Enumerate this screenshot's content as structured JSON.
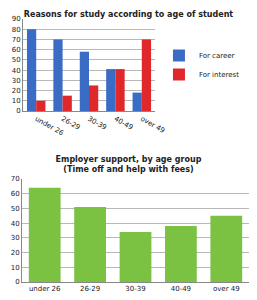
{
  "chart_data": [
    {
      "type": "bar",
      "title": "Reasons for study according to age of student",
      "categories": [
        "under 26",
        "26-29",
        "30-39",
        "40-49",
        "over 49"
      ],
      "series": [
        {
          "name": "For career",
          "color": "#3a6cc6",
          "values": [
            80,
            70,
            58,
            41,
            18
          ]
        },
        {
          "name": "For interest",
          "color": "#e0282a",
          "values": [
            10,
            15,
            25,
            41,
            70
          ]
        }
      ],
      "ylim": [
        0,
        90
      ],
      "yticks": [
        0,
        10,
        20,
        30,
        40,
        50,
        60,
        70,
        80,
        90
      ],
      "grid": true,
      "legend": "right"
    },
    {
      "type": "bar",
      "title": "Employer support, by age group\n(Time off and help with fees)",
      "categories": [
        "under 26",
        "26-29",
        "30-39",
        "40-49",
        "over 49"
      ],
      "values": [
        64,
        51,
        34,
        38,
        45
      ],
      "color": "#7cc242",
      "ylim": [
        0,
        70
      ],
      "yticks": [
        0,
        10,
        20,
        30,
        40,
        50,
        60,
        70
      ],
      "grid": true
    }
  ]
}
